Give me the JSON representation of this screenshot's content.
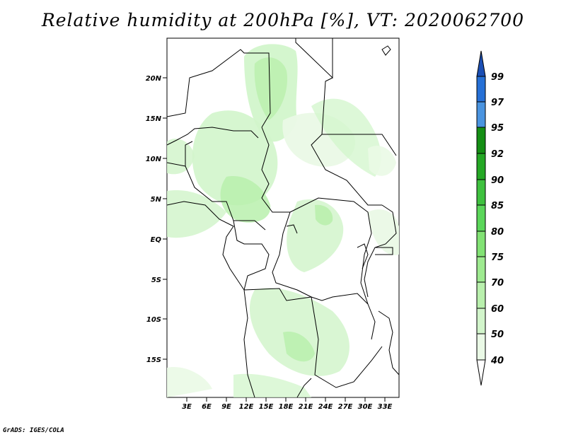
{
  "title": "Relative humidity at 200hPa [%], VT: 2020062700",
  "credit": "GrADS: IGES/COLA",
  "map": {
    "variable": "Relative humidity",
    "level": "200hPa",
    "units": "%",
    "valid_time": "2020062700",
    "lat_ticks": [
      "20N",
      "15N",
      "10N",
      "5N",
      "EQ",
      "5S",
      "10S",
      "15S"
    ],
    "lon_ticks": [
      "3E",
      "6E",
      "9E",
      "12E",
      "15E",
      "18E",
      "21E",
      "24E",
      "27E",
      "30E",
      "33E"
    ]
  },
  "colorbar": {
    "labels": [
      "40",
      "50",
      "60",
      "70",
      "75",
      "80",
      "85",
      "90",
      "92",
      "95",
      "97",
      "99"
    ],
    "colors": {
      "c40": "#eaf9e6",
      "c50": "#d2f5cb",
      "c60": "#b9f0ad",
      "c70": "#9eea90",
      "c75": "#82e274",
      "c80": "#5bd65a",
      "c85": "#3fc13f",
      "c90": "#25a825",
      "c92": "#158f15",
      "c95": "#4a94e0",
      "c97": "#2670d6",
      "c99": "#1b4fb5"
    }
  }
}
